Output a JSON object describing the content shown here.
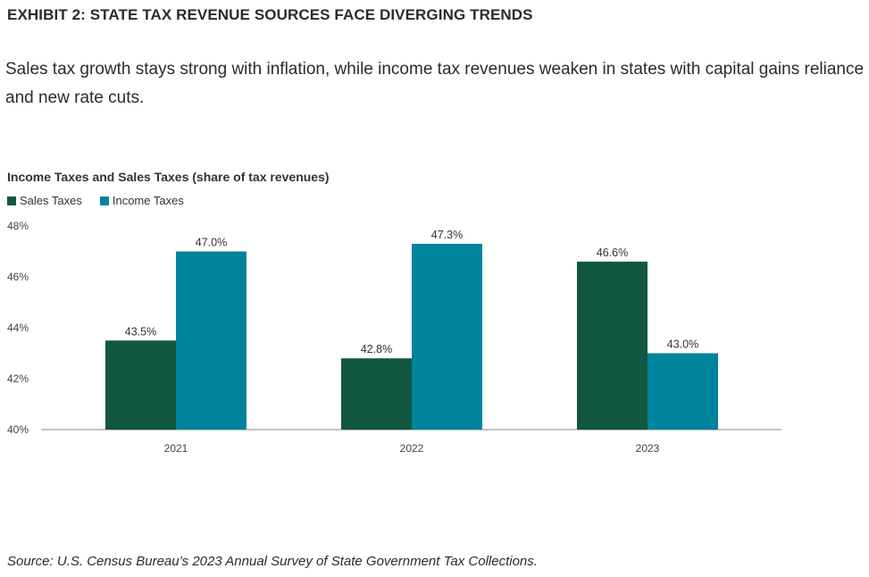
{
  "header": {
    "exhibit_title": "EXHIBIT 2: STATE TAX REVENUE SOURCES FACE DIVERGING TRENDS",
    "subtitle": "Sales tax growth stays strong with inflation, while income tax revenues weaken in states with capital gains reliance and new rate cuts."
  },
  "source": "Source: U.S. Census Bureau’s 2023 Annual Survey of State Government Tax Collections.",
  "chart_data": {
    "type": "bar",
    "title": "Income Taxes and Sales Taxes (share of tax revenues)",
    "categories": [
      "2021",
      "2022",
      "2023"
    ],
    "series": [
      {
        "name": "Sales Taxes",
        "color": "#115742",
        "values": [
          43.5,
          42.8,
          46.6
        ],
        "labels": [
          "43.5%",
          "42.8%",
          "46.6%"
        ]
      },
      {
        "name": "Income Taxes",
        "color": "#00839c",
        "values": [
          47.0,
          47.3,
          43.0
        ],
        "labels": [
          "47.0%",
          "47.3%",
          "43.0%"
        ]
      }
    ],
    "ylim": [
      40,
      48
    ],
    "yticks": [
      40,
      42,
      44,
      46,
      48
    ],
    "ytick_labels": [
      "40%",
      "42%",
      "44%",
      "46%",
      "48%"
    ],
    "xlabel": "",
    "ylabel": "",
    "legend_position": "top-left",
    "grid": false
  }
}
